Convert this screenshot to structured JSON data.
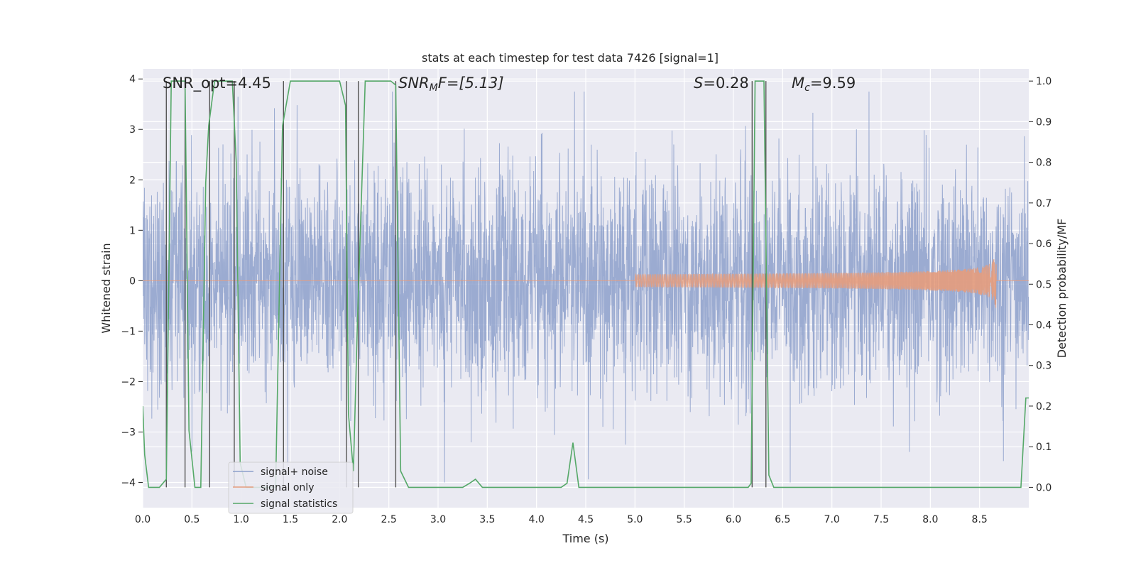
{
  "chart_data": {
    "type": "line",
    "title": "stats at each timestep for test data 7426 [signal=1]",
    "xlabel": "Time (s)",
    "ylabel_left": "Whitened strain",
    "ylabel_right": "Detection probability/MF",
    "xlim": [
      0,
      9.0
    ],
    "ylim_left": [
      -4.5,
      4.2
    ],
    "ylim_right": [
      -0.05,
      1.03
    ],
    "x_ticks": [
      0,
      0.5,
      1,
      1.5,
      2,
      2.5,
      3,
      3.5,
      4,
      4.5,
      5,
      5.5,
      6,
      6.5,
      7,
      7.5,
      8,
      8.5
    ],
    "x_tick_labels": [
      "0.0",
      "0.5",
      "1.0",
      "1.5",
      "2.0",
      "2.5",
      "3.0",
      "3.5",
      "4.0",
      "4.5",
      "5.0",
      "5.5",
      "6.0",
      "6.5",
      "7.0",
      "7.5",
      "8.0",
      "8.5"
    ],
    "y_left_ticks": [
      -4,
      -3,
      -2,
      -1,
      0,
      1,
      2,
      3,
      4
    ],
    "y_left_tick_labels": [
      "−4",
      "−3",
      "−2",
      "−1",
      "0",
      "1",
      "2",
      "3",
      "4"
    ],
    "y_right_ticks": [
      0.0,
      0.1,
      0.2,
      0.3,
      0.4,
      0.5,
      0.6,
      0.7,
      0.8,
      0.9,
      1.0
    ],
    "y_right_tick_labels": [
      "0.0",
      "0.1",
      "0.2",
      "0.3",
      "0.4",
      "0.5",
      "0.6",
      "0.7",
      "0.8",
      "0.9",
      "1.0"
    ],
    "annotations": {
      "snr_opt": "SNR_opt=4.45",
      "snr_mf_sym": "SNR",
      "snr_mf_sub": "M",
      "snr_mf_rest": "F=[5.13]",
      "s_sym": "S",
      "s_rest": "=0.28",
      "mc_sym": "M",
      "mc_sub": "c",
      "mc_rest": "=9.59"
    },
    "series": [
      {
        "name": "signal+ noise",
        "axis": "left",
        "color": "#8da0cb",
        "description": "dense whitened strain noise, typical amplitude about ±2, peaks to about ±3.8, spanning 0 to 9 s"
      },
      {
        "name": "signal only",
        "axis": "left",
        "color": "#e59c7c",
        "chirp_start": 5.0,
        "chirp_end": 8.67,
        "chirp_peak_amplitude": 0.75
      },
      {
        "name": "signal statistics",
        "axis": "right",
        "color": "#55a868",
        "x": [
          0,
          0.02,
          0.06,
          0.17,
          0.24,
          0.29,
          0.38,
          0.43,
          0.47,
          0.53,
          0.59,
          0.64,
          0.67,
          0.73,
          0.91,
          0.95,
          0.99,
          1.05,
          1.35,
          1.42,
          1.5,
          2.0,
          2.06,
          2.09,
          2.14,
          2.18,
          2.22,
          2.26,
          2.52,
          2.57,
          2.62,
          2.7,
          2.75,
          3.25,
          3.32,
          3.38,
          3.45,
          3.5,
          4.25,
          4.31,
          4.37,
          4.43,
          4.49,
          6.15,
          6.18,
          6.22,
          6.26,
          6.31,
          6.36,
          6.41,
          8.92,
          8.97,
          9.0
        ],
        "values": [
          0.2,
          0.08,
          0.0,
          0.0,
          0.02,
          1.0,
          1.0,
          1.0,
          0.14,
          0.0,
          0.0,
          0.75,
          0.89,
          1.0,
          1.0,
          0.8,
          0.06,
          0.0,
          0.0,
          0.89,
          1.0,
          1.0,
          0.94,
          0.18,
          0.04,
          0.4,
          0.7,
          1.0,
          1.0,
          0.99,
          0.04,
          0.0,
          0.0,
          0.0,
          0.01,
          0.02,
          0.0,
          0.0,
          0.0,
          0.01,
          0.11,
          0.0,
          0.0,
          0.0,
          0.01,
          1.0,
          1.0,
          1.0,
          0.03,
          0.0,
          0.0,
          0.22,
          0.22
        ]
      }
    ],
    "vertical_markers_x": [
      0.24,
      0.43,
      0.68,
      0.93,
      1.43,
      2.07,
      2.19,
      2.57,
      6.19,
      6.33
    ],
    "legend": {
      "position": "lower-left",
      "entries": [
        "signal+ noise",
        "signal only",
        "signal statistics"
      ]
    }
  }
}
